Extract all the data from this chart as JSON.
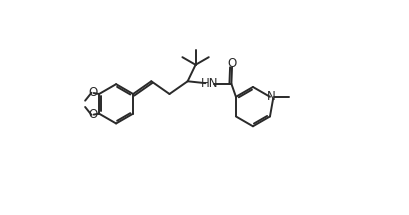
{
  "background_color": "#ffffff",
  "line_color": "#2a2a2a",
  "line_width": 1.4,
  "font_size": 8.5,
  "fig_width": 4.09,
  "fig_height": 2.15,
  "dpi": 100,
  "xlim": [
    0.0,
    10.0
  ],
  "ylim": [
    0.2,
    5.2
  ]
}
